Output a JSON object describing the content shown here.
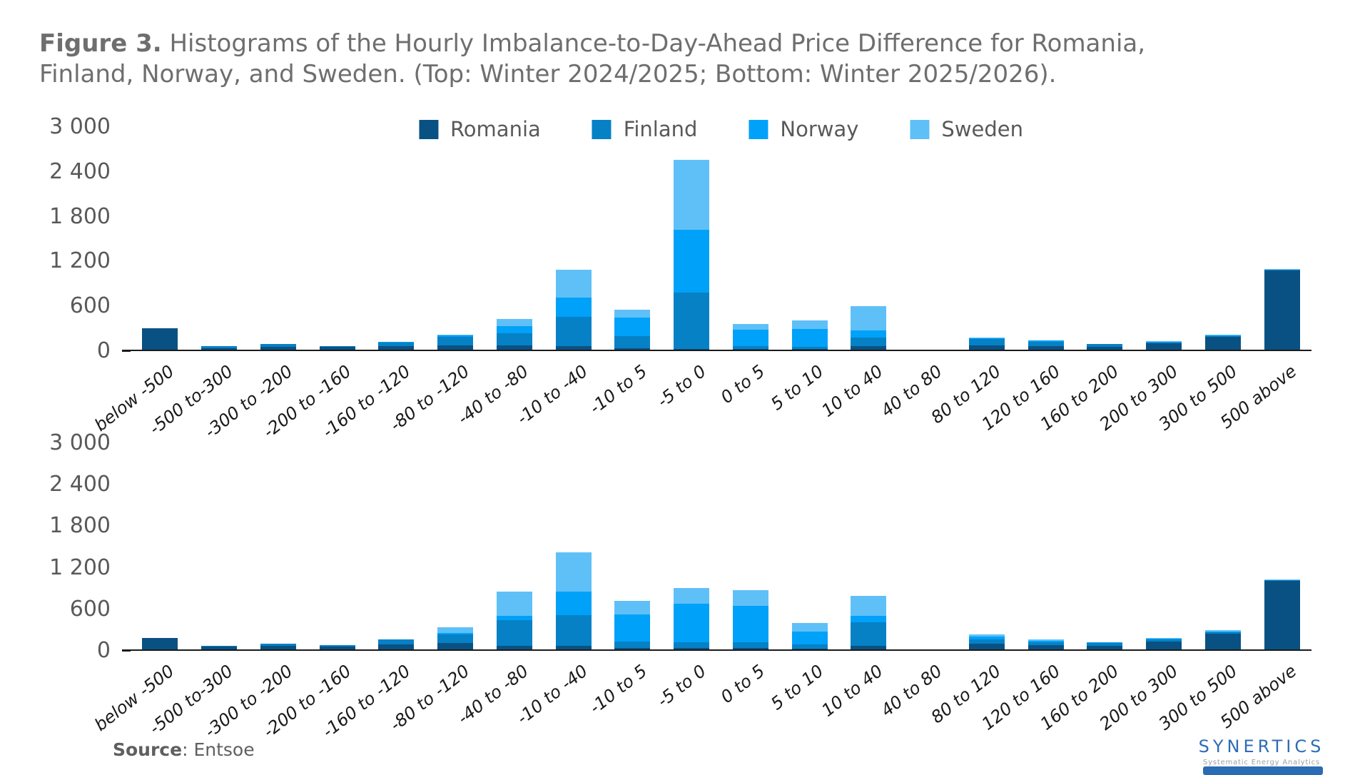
{
  "title": {
    "prefix": "Figure 3.",
    "line1_rest": " Histograms of the Hourly Imbalance-to-Day-Ahead Price Difference for Romania,",
    "line2": "Finland, Norway, and Sweden. (Top: Winter 2024/2025; Bottom: Winter 2025/2026)."
  },
  "legend": {
    "items": [
      {
        "label": "Romania",
        "color": "#0A5183"
      },
      {
        "label": "Finland",
        "color": "#0681C6"
      },
      {
        "label": "Norway",
        "color": "#00A1F8"
      },
      {
        "label": "Sweden",
        "color": "#5FC0F8"
      }
    ]
  },
  "chart_data": [
    {
      "type": "bar",
      "stacked": true,
      "name": "Winter 2024/2025",
      "ylim": [
        0,
        3000
      ],
      "ytick_labels": [
        "3 000",
        "2 400",
        "1 800",
        "1 200",
        "600",
        "0"
      ],
      "ytick_values": [
        3000,
        2400,
        1800,
        1200,
        600,
        0
      ],
      "categories": [
        "below -500",
        "-500 to-300",
        "-300 to -200",
        "-200 to -160",
        "-160 to -120",
        "-80 to -120",
        "-40 to -80",
        "-10 to -40",
        "-10 to 5",
        "-5 to 0",
        "0 to 5",
        "5 to 10",
        "10 to 40",
        "40 to 80",
        "80 to 120",
        "120 to 160",
        "160 to 200",
        "200 to 300",
        "300 to 500",
        "500 above"
      ],
      "series": [
        {
          "name": "Romania",
          "values": [
            290,
            15,
            40,
            35,
            45,
            60,
            55,
            50,
            20,
            10,
            10,
            10,
            50,
            0,
            60,
            50,
            40,
            90,
            170,
            1060
          ]
        },
        {
          "name": "Finland",
          "values": [
            0,
            30,
            35,
            15,
            50,
            110,
            165,
            390,
            165,
            755,
            40,
            30,
            115,
            0,
            80,
            60,
            35,
            10,
            15,
            10
          ]
        },
        {
          "name": "Norway",
          "values": [
            0,
            0,
            5,
            0,
            10,
            20,
            95,
            255,
            250,
            840,
            220,
            240,
            90,
            0,
            15,
            10,
            0,
            10,
            10,
            5
          ]
        },
        {
          "name": "Sweden",
          "values": [
            0,
            0,
            0,
            0,
            0,
            15,
            95,
            380,
            100,
            940,
            70,
            115,
            325,
            0,
            10,
            5,
            0,
            5,
            5,
            5
          ]
        }
      ]
    },
    {
      "type": "bar",
      "stacked": true,
      "name": "Winter 2025/2026",
      "ylim": [
        0,
        3000
      ],
      "ytick_labels": [
        "3 000",
        "2 400",
        "1 800",
        "1 200",
        "600",
        "0"
      ],
      "ytick_values": [
        3000,
        2400,
        1800,
        1200,
        600,
        0
      ],
      "categories": [
        "below -500",
        "-500 to-300",
        "-300 to -200",
        "-200 to -160",
        "-160 to -120",
        "-80 to -120",
        "-40 to -80",
        "-10 to -40",
        "-10 to 5",
        "-5 to 0",
        "0 to 5",
        "5 to 10",
        "10 to 40",
        "40 to 80",
        "80 to 120",
        "120 to 160",
        "160 to 200",
        "200 to 300",
        "300 to 500",
        "500 above"
      ],
      "series": [
        {
          "name": "Romania",
          "values": [
            165,
            40,
            55,
            45,
            70,
            95,
            50,
            50,
            25,
            20,
            20,
            15,
            50,
            0,
            80,
            60,
            55,
            110,
            230,
            990
          ]
        },
        {
          "name": "Finland",
          "values": [
            0,
            12,
            28,
            17,
            70,
            125,
            370,
            440,
            85,
            80,
            85,
            60,
            340,
            0,
            65,
            45,
            35,
            35,
            20,
            10
          ]
        },
        {
          "name": "Norway",
          "values": [
            0,
            0,
            0,
            0,
            5,
            20,
            60,
            350,
            400,
            560,
            525,
            180,
            95,
            0,
            45,
            15,
            10,
            15,
            10,
            5
          ]
        },
        {
          "name": "Sweden",
          "values": [
            0,
            0,
            0,
            0,
            0,
            80,
            360,
            560,
            190,
            230,
            225,
            130,
            285,
            0,
            28,
            20,
            8,
            8,
            15,
            10
          ]
        }
      ]
    }
  ],
  "source": {
    "label": "Source",
    "rest": ": Entsoe"
  },
  "logo": {
    "name": "SYNERTICS",
    "tagline": "Systematic Energy Analytics"
  }
}
